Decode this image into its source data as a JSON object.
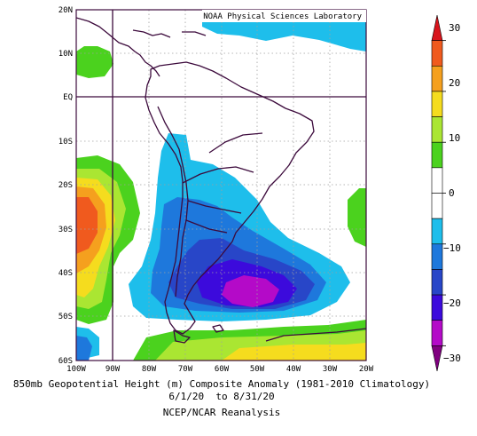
{
  "credit": "NOAA Physical Sciences Laboratory",
  "caption": {
    "line1": "850mb Geopotential Height (m) Composite Anomaly (1981-2010 Climatology)",
    "line2": "6/1/20  to 8/31/20",
    "line3": "NCEP/NCAR Reanalysis"
  },
  "lat_labels": [
    "20N",
    "10N",
    "EQ",
    "10S",
    "20S",
    "30S",
    "40S",
    "50S",
    "60S"
  ],
  "lon_labels": [
    "100W",
    "90W",
    "80W",
    "70W",
    "60W",
    "50W",
    "40W",
    "30W",
    "20W"
  ],
  "colorbar": {
    "labels": [
      "30",
      "20",
      "10",
      "0",
      "−10",
      "−20",
      "−30"
    ],
    "colors": [
      "#d8141c",
      "#f05a1e",
      "#f5a01e",
      "#f5dc1e",
      "#aae632",
      "#4bd21e",
      "#ffffff",
      "#ffffff",
      "#1ebeeb",
      "#1e78dc",
      "#2846c8",
      "#3c0adc",
      "#b40ac8",
      "#800080"
    ]
  },
  "colors": {
    "land": "#ffffff",
    "coast": "#3c0a3c",
    "grid": "#a0a0a0",
    "frame": "#3c0a3c"
  }
}
